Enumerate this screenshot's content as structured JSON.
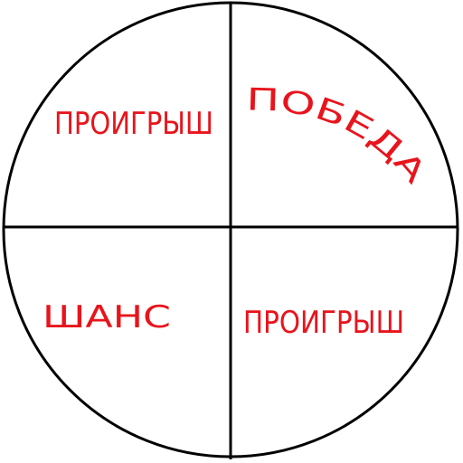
{
  "wheel": {
    "segments": [
      {
        "label": "ПРОИГРЫШ"
      },
      {
        "label": "ПОБЕДА"
      },
      {
        "label": "ШАНС"
      },
      {
        "label": "ПРОИГРЫШ"
      }
    ],
    "colors": {
      "outline": "#000000",
      "label": "#e8141c",
      "background": "#ffffff"
    }
  }
}
